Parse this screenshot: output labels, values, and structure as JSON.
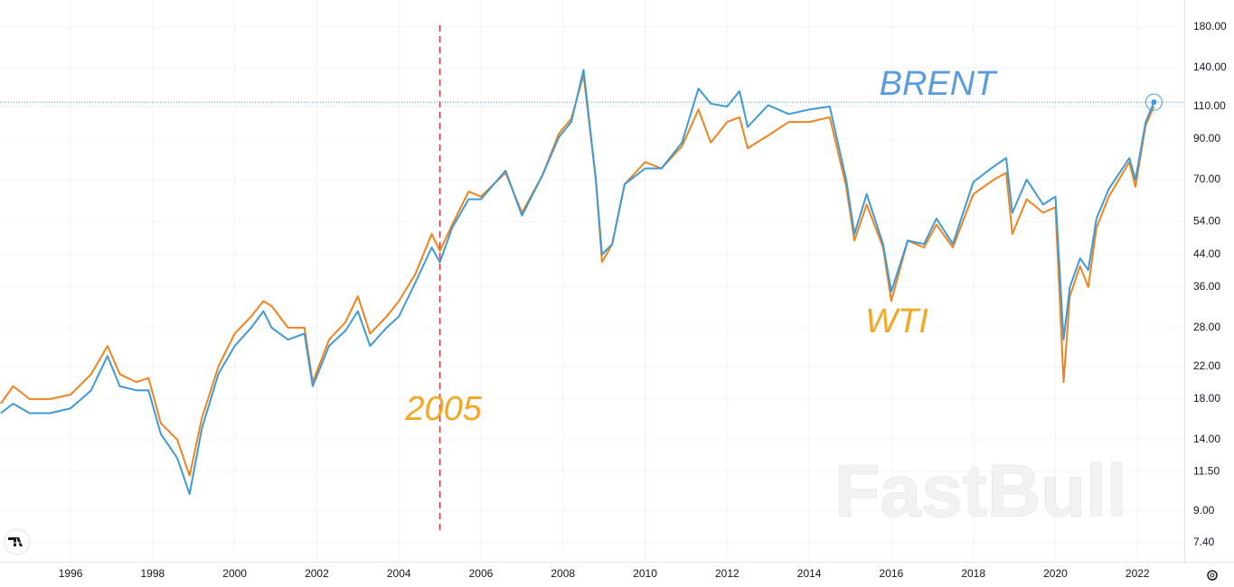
{
  "chart_data": {
    "type": "line",
    "x": [
      1994.3,
      1994.6,
      1995.0,
      1995.5,
      1996.0,
      1996.5,
      1996.9,
      1997.2,
      1997.6,
      1997.9,
      1998.2,
      1998.6,
      1998.9,
      1999.2,
      1999.6,
      2000.0,
      2000.4,
      2000.7,
      2000.9,
      2001.3,
      2001.7,
      2001.9,
      2002.3,
      2002.7,
      2003.0,
      2003.3,
      2003.7,
      2004.0,
      2004.4,
      2004.8,
      2005.0,
      2005.3,
      2005.7,
      2006.0,
      2006.6,
      2007.0,
      2007.5,
      2007.9,
      2008.2,
      2008.5,
      2008.8,
      2008.95,
      2009.2,
      2009.5,
      2010.0,
      2010.4,
      2010.9,
      2011.3,
      2011.6,
      2012.0,
      2012.3,
      2012.5,
      2013.0,
      2013.5,
      2014.0,
      2014.5,
      2014.9,
      2015.1,
      2015.4,
      2015.8,
      2016.0,
      2016.4,
      2016.8,
      2017.1,
      2017.5,
      2018.0,
      2018.5,
      2018.8,
      2018.95,
      2019.3,
      2019.7,
      2020.0,
      2020.2,
      2020.35,
      2020.6,
      2020.8,
      2021.0,
      2021.3,
      2021.8,
      2021.95,
      2022.2,
      2022.4
    ],
    "series": [
      {
        "name": "BRENT",
        "color": "#3d9ad6",
        "values": [
          16.5,
          17.5,
          16.5,
          16.5,
          17,
          19,
          23.5,
          19.5,
          19,
          19,
          14.5,
          12.5,
          10,
          15,
          21,
          25,
          28,
          31,
          28,
          26,
          27,
          19.5,
          25,
          27.5,
          31,
          25,
          28,
          30,
          37,
          46,
          42,
          52,
          62,
          62,
          74,
          56,
          72,
          91,
          100,
          138,
          70,
          44,
          47,
          68,
          75,
          75,
          88,
          123,
          112,
          110,
          121,
          97,
          111,
          105,
          108,
          110,
          70,
          50,
          64,
          47,
          35,
          48,
          47,
          55,
          47,
          69,
          76,
          80,
          57,
          70,
          60,
          63,
          26,
          36,
          43,
          40,
          55,
          66,
          80,
          70,
          100,
          113
        ]
      },
      {
        "name": "WTI",
        "color": "#f0831d",
        "values": [
          17.5,
          19.5,
          18,
          18,
          18.5,
          21,
          25,
          21,
          20,
          20.5,
          15.5,
          14,
          11.2,
          16,
          22,
          27,
          30,
          33,
          32,
          28,
          28,
          20,
          26,
          29,
          34,
          27,
          30,
          33,
          39,
          50,
          45,
          53,
          65,
          63,
          73,
          57,
          72,
          93,
          102,
          134,
          70,
          42,
          47,
          68,
          78,
          75,
          86,
          108,
          88,
          100,
          103,
          85,
          92,
          100,
          100,
          103,
          67,
          48,
          60,
          46,
          33,
          48,
          46,
          53,
          46,
          64,
          70,
          73,
          50,
          62,
          57,
          59,
          20,
          34,
          41,
          36,
          52,
          63,
          78,
          67,
          98,
          110
        ]
      }
    ],
    "ylim": [
      6.58,
      212.7
    ],
    "log_scale": true,
    "yticks": [
      {
        "value": 7.4,
        "label": "7.40"
      },
      {
        "value": 9,
        "label": "9.00"
      },
      {
        "value": 11.5,
        "label": "11.50"
      },
      {
        "value": 14,
        "label": "14.00"
      },
      {
        "value": 18,
        "label": "18.00"
      },
      {
        "value": 22,
        "label": "22.00"
      },
      {
        "value": 28,
        "label": "28.00"
      },
      {
        "value": 36,
        "label": "36.00"
      },
      {
        "value": 44,
        "label": "44.00"
      },
      {
        "value": 54,
        "label": "54.00"
      },
      {
        "value": 70,
        "label": "70.00"
      },
      {
        "value": 90,
        "label": "90.00"
      },
      {
        "value": 110,
        "label": "110.00"
      },
      {
        "value": 140,
        "label": "140.00"
      },
      {
        "value": 180,
        "label": "180.00"
      }
    ],
    "xlim": [
      1994.28,
      2023.14
    ],
    "xticks": [
      1996,
      1998,
      2000,
      2002,
      2004,
      2006,
      2008,
      2010,
      2012,
      2014,
      2016,
      2018,
      2020,
      2022
    ],
    "grid": true,
    "event_line": 2005,
    "watermark": "FastBull"
  }
}
